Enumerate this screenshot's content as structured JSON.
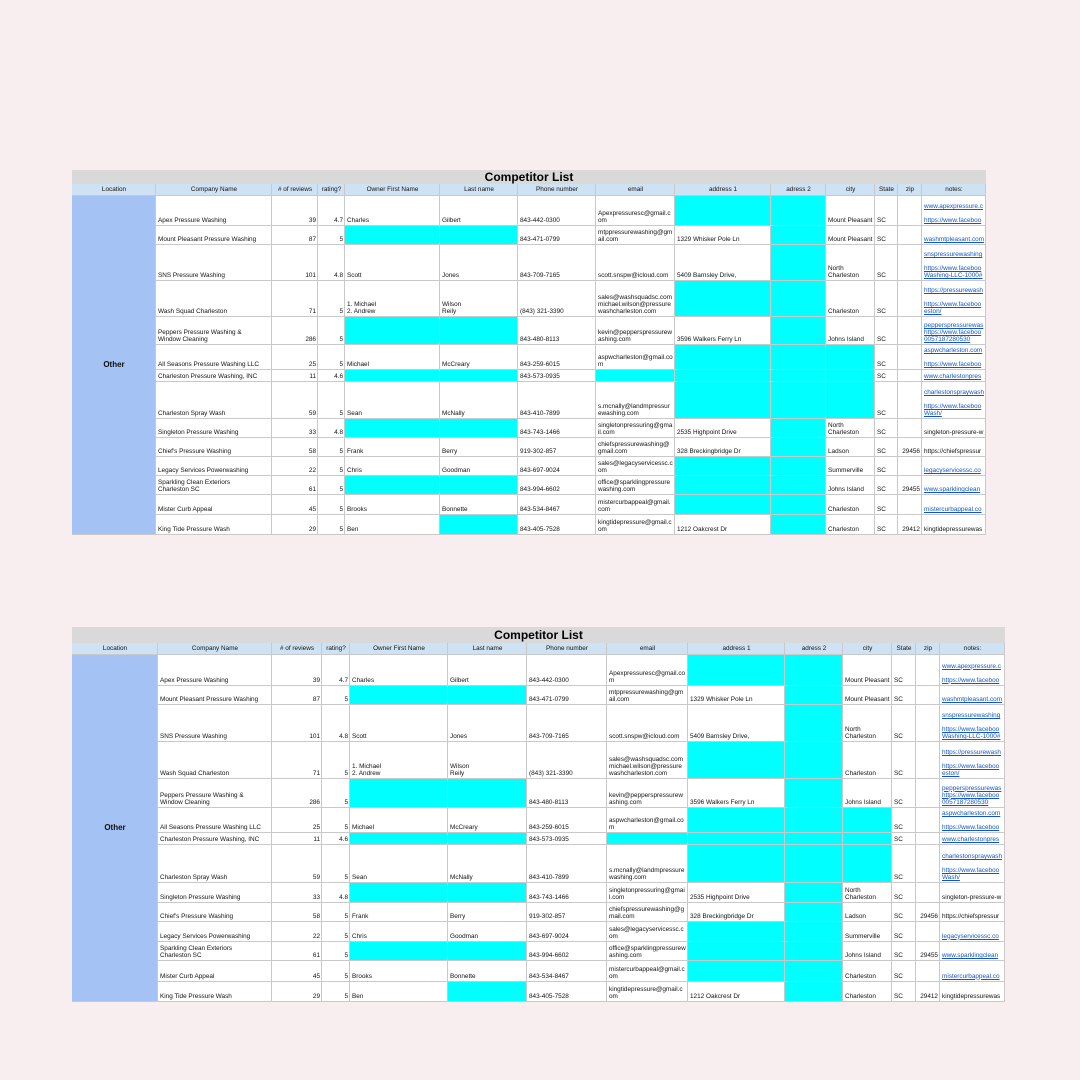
{
  "title": "Competitor List",
  "columns": [
    "Location",
    "Company Name",
    "# of reviews",
    "rating?",
    "Owner First Name",
    "Last name",
    "Phone number",
    "email",
    "address 1",
    "adress 2",
    "city",
    "State",
    "zip",
    "notes:"
  ],
  "location": "Other",
  "rows": [
    [
      "Apex Pressure Washing",
      39,
      4.7,
      "Charles",
      "Gilbert",
      "843-442-0300",
      "Apexpressuresc@gmail.com",
      null,
      null,
      "Mount Pleasant",
      "SC",
      null,
      "www.apexpressure.c\n\nhttps://www.faceboo"
    ],
    [
      "Mount Pleasant Pressure Washing",
      87,
      5,
      null,
      null,
      "843-471-0799",
      "mtppressurewashing@gmail.com",
      "1329 Whisker Pole Ln",
      null,
      "Mount Pleasant",
      "SC",
      null,
      "washmtpleasant.com"
    ],
    [
      "SNS Pressure Washing",
      101,
      4.8,
      "Scott",
      "Jones",
      "843-709-7165",
      "scott.snspw@icloud.com",
      "5409 Barnsley Drive,",
      null,
      "North\nCharleston",
      "SC",
      null,
      "snspressurewashing\n\nhttps://www.faceboo\nWashing-LLC-1000#"
    ],
    [
      "Wash Squad Charleston",
      71,
      5,
      "1. Michael\n2. Andrew",
      "Wilson\nReily",
      "(843) 321-3390",
      "sales@washsquadsc.com michael.wilson@pressurewashcharleston.com",
      null,
      null,
      "Charleston",
      "SC",
      null,
      "https://pressurewash\n\nhttps://www.faceboo\neston/"
    ],
    [
      "Peppers Pressure Washing &\nWindow Cleaning",
      286,
      5,
      null,
      null,
      "843-480-8113",
      "kevin@pepperspressurewashing.com",
      "3596 Walkers Ferry Ln",
      null,
      "Johns Island",
      "SC",
      null,
      "pepperspressurewas\nhttps://www.faceboo\n0057187280530"
    ],
    [
      "All Seasons Pressure Washing LLC",
      25,
      5,
      "Michael",
      "McCreary",
      "843-259-6015",
      "aspwcharleston@gmail.com",
      null,
      null,
      null,
      "SC",
      null,
      "aspwcharleston.com\n\nhttps://www.faceboo"
    ],
    [
      "Charleston Pressure Washing, INC",
      11,
      4.6,
      null,
      null,
      "843-573-0935",
      null,
      null,
      null,
      null,
      "SC",
      null,
      "www.charlestonpres"
    ],
    [
      "Charleston Spray Wash",
      59,
      5,
      "Sean",
      "McNally",
      "843-410-7899",
      "s.mcnally@landmpressurewashing.com",
      null,
      null,
      null,
      "SC",
      null,
      "charlestonspraywash\n\nhttps://www.faceboo\nWash/"
    ],
    [
      "Singleton Pressure Washing",
      33,
      4.8,
      null,
      null,
      "843-743-1466",
      "singletonpressuring@gmail.com",
      "2535 Highpoint Drive",
      null,
      "North\nCharleston",
      "SC",
      null,
      "singleton-pressure-w"
    ],
    [
      "Chief's Pressure Washing",
      58,
      5,
      "Frank",
      "Berry",
      "919-302-857",
      "chiefspressurewashing@gmail.com",
      "328 Breckingbridge Dr",
      null,
      "Ladson",
      "SC",
      29456,
      "https://chiefspressur"
    ],
    [
      "Legacy Services Powerwashing",
      22,
      5,
      "Chris",
      "Goodman",
      "843-697-9024",
      "sales@legacyservicessc.com",
      null,
      null,
      "Summerville",
      "SC",
      null,
      "legacyservicessc.co"
    ],
    [
      "Sparkling Clean Exteriors\nCharleston SC",
      61,
      5,
      null,
      null,
      "843-994-6602",
      "office@sparklingpressurewashing.com",
      null,
      null,
      "Johns Island",
      "SC",
      29455,
      "www.sparklingclean"
    ],
    [
      "Mister Curb Appeal",
      45,
      5,
      "Brooks",
      "Bonnette",
      "843-534-8467",
      "mistercurbappeal@gmail.com",
      null,
      null,
      "Charleston",
      "SC",
      null,
      "mistercurbappeal.co"
    ],
    [
      "King Tide Pressure Wash",
      29,
      5,
      "Ben",
      null,
      "843-405-7528",
      "kingtidepressure@gmail.com",
      "1212 Oakcrest Dr",
      null,
      "Charleston",
      "SC",
      29412,
      "kingtidepressurewas"
    ]
  ]
}
